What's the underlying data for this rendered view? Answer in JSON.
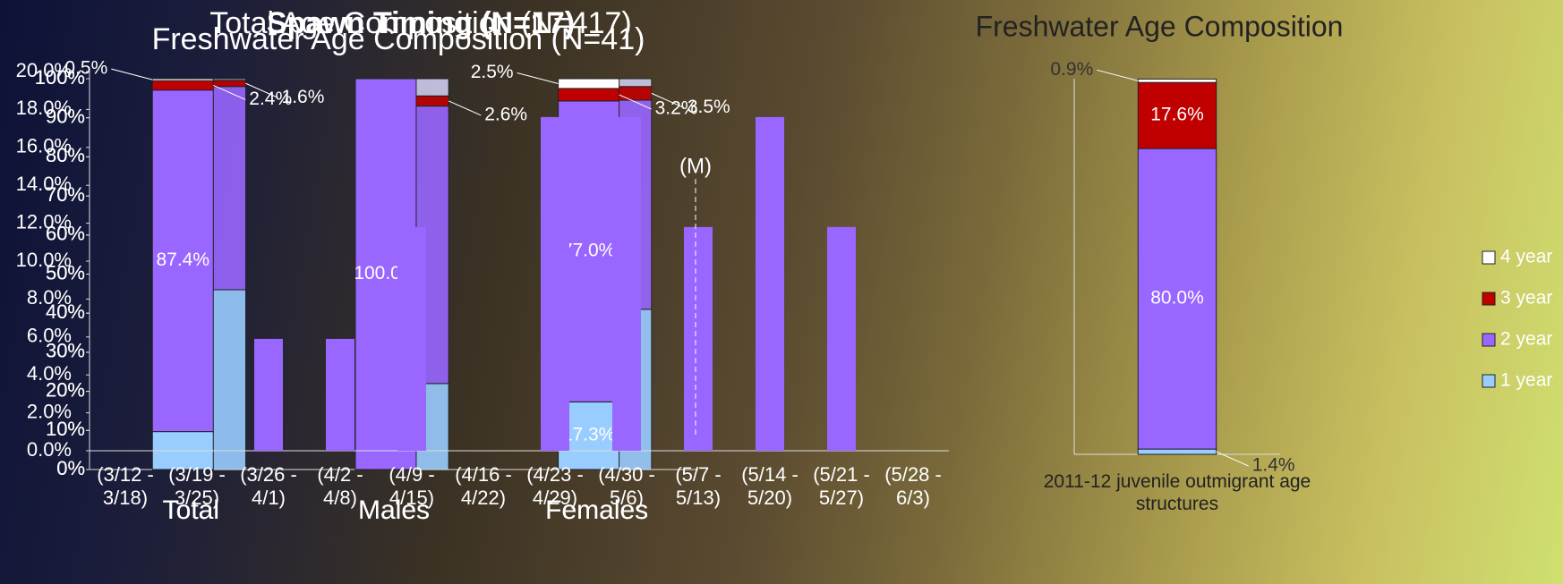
{
  "chart_data": [
    {
      "type": "stacked_bar",
      "title": "Total Age Composition (N=417)",
      "categories": [
        "Total",
        "Males",
        "Females"
      ],
      "series": [
        {
          "name": "1 year",
          "color": "#99ccff",
          "values": [
            46.0,
            22.0,
            41.0
          ],
          "value_labels": [
            null,
            null,
            null
          ]
        },
        {
          "name": "2 year",
          "color": "#9966ff",
          "values": [
            52.0,
            71.0,
            53.5
          ],
          "value_labels": [
            null,
            null,
            null
          ]
        },
        {
          "name": "3 year",
          "color": "#c00000",
          "values": [
            1.6,
            2.6,
            3.5
          ],
          "value_labels": [
            "1.6%",
            "2.6%",
            "3.5%"
          ]
        },
        {
          "name": "4 year",
          "color": "#ccccee",
          "values": [
            0.4,
            4.4,
            2.0
          ],
          "value_labels": [
            null,
            null,
            null
          ]
        }
      ],
      "ylim": [
        0,
        100
      ],
      "yticks": [
        {
          "value": 0,
          "label": "0%"
        },
        {
          "value": 10,
          "label": "10%"
        },
        {
          "value": 20,
          "label": "20%"
        },
        {
          "value": 30,
          "label": "30%"
        },
        {
          "value": 40,
          "label": "40%"
        },
        {
          "value": 50,
          "label": "50%"
        },
        {
          "value": 60,
          "label": "60%"
        },
        {
          "value": 70,
          "label": "70%"
        },
        {
          "value": 80,
          "label": "80%"
        },
        {
          "value": 90,
          "label": "90%"
        },
        {
          "value": 100,
          "label": "100%"
        }
      ]
    },
    {
      "type": "stacked_bar",
      "title": "Freshwater Age Composition (N=41)",
      "categories": [
        "Total",
        "Males",
        "Females"
      ],
      "series": [
        {
          "name": "1 year",
          "color": "#99ccff",
          "values": [
            9.7,
            0,
            17.3
          ],
          "value_labels": [
            null,
            null,
            "17.3%"
          ]
        },
        {
          "name": "2 year",
          "color": "#9966ff",
          "values": [
            87.4,
            100.0,
            77.0
          ],
          "value_labels": [
            "87.4%",
            "100.0%",
            "77.0%"
          ]
        },
        {
          "name": "3 year",
          "color": "#c00000",
          "values": [
            2.4,
            0,
            3.2
          ],
          "value_labels": [
            "2.4%",
            null,
            "3.2%"
          ]
        },
        {
          "name": "4 year",
          "color": "#ffffff",
          "values": [
            0.5,
            0,
            2.5
          ],
          "value_labels": [
            "0.5%",
            null,
            "2.5%"
          ]
        }
      ],
      "ylim": [
        0,
        100
      ],
      "yticks": [
        {
          "value": 0,
          "label": "0%"
        },
        {
          "value": 10,
          "label": "10%"
        },
        {
          "value": 20,
          "label": "20%"
        },
        {
          "value": 30,
          "label": "30%"
        },
        {
          "value": 40,
          "label": "40%"
        },
        {
          "value": 50,
          "label": "50%"
        },
        {
          "value": 60,
          "label": "60%"
        },
        {
          "value": 70,
          "label": "70%"
        },
        {
          "value": 80,
          "label": "80%"
        },
        {
          "value": 90,
          "label": "90%"
        },
        {
          "value": 100,
          "label": "100%"
        }
      ]
    },
    {
      "type": "bar",
      "title": "Spawn Timing (N=17)",
      "categories": [
        "(3/12 - 3/18)",
        "(3/19 - 3/25)",
        "(3/26 - 4/1)",
        "(4/2 - 4/8)",
        "(4/9 - 4/15)",
        "(4/16 - 4/22)",
        "(4/23 - 4/29)",
        "(4/30 - 5/6)",
        "(5/7 - 5/13)",
        "(5/14 - 5/20)",
        "(5/21 - 5/27)",
        "(5/28 - 6/3)"
      ],
      "values": [
        0,
        0,
        5.9,
        5.9,
        11.8,
        0,
        17.6,
        17.6,
        11.8,
        17.6,
        11.8,
        0
      ],
      "color": "#9966ff",
      "annotation": "(M)",
      "ylim": [
        0,
        20
      ],
      "yticks": [
        {
          "value": 0,
          "label": "0.0%"
        },
        {
          "value": 2,
          "label": "2.0%"
        },
        {
          "value": 4,
          "label": "4.0%"
        },
        {
          "value": 6,
          "label": "6.0%"
        },
        {
          "value": 8,
          "label": "8.0%"
        },
        {
          "value": 10,
          "label": "10.0%"
        },
        {
          "value": 12,
          "label": "12.0%"
        },
        {
          "value": 14,
          "label": "14.0%"
        },
        {
          "value": 16,
          "label": "16.0%"
        },
        {
          "value": 18,
          "label": "18.0%"
        },
        {
          "value": 20,
          "label": "20.0%"
        }
      ]
    },
    {
      "type": "stacked_bar",
      "title": "Freshwater Age Composition",
      "categories": [
        "2011-12 juvenile outmigrant age structures"
      ],
      "series": [
        {
          "name": "1 year",
          "color": "#99ccff",
          "values": [
            1.4
          ],
          "value_labels": [
            "1.4%"
          ]
        },
        {
          "name": "2 year",
          "color": "#9966ff",
          "values": [
            80.0
          ],
          "value_labels": [
            "80.0%"
          ]
        },
        {
          "name": "3 year",
          "color": "#c00000",
          "values": [
            17.6
          ],
          "value_labels": [
            "17.6%"
          ]
        },
        {
          "name": "4 year",
          "color": "#ffffff",
          "values": [
            0.9
          ],
          "value_labels": [
            "0.9%"
          ]
        }
      ],
      "ylim": [
        0,
        100
      ],
      "legend": "right"
    }
  ]
}
